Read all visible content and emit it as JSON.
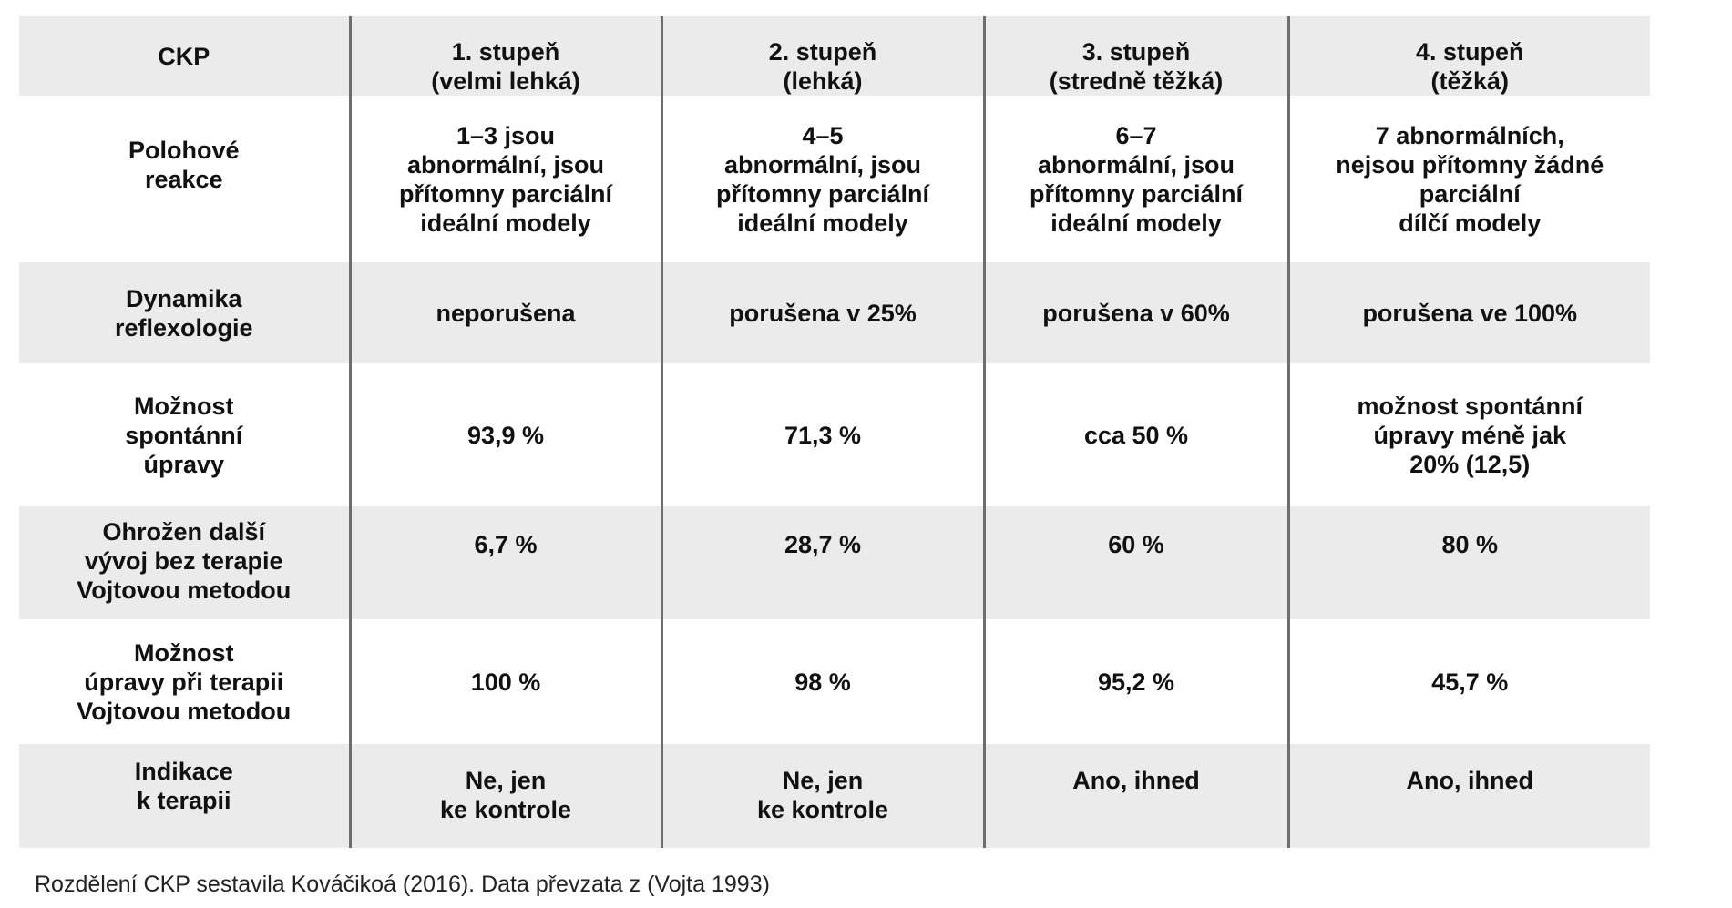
{
  "table": {
    "header": {
      "label": "CKP",
      "columns": [
        "1. stupeň\n(velmi lehká)",
        "2. stupeň\n(lehká)",
        "3. stupeň\n(stredně těžká)",
        "4. stupeň\n(těžká)"
      ]
    },
    "rows": [
      {
        "label": "Polohové\nreakce",
        "cells": [
          "1–3 jsou\nabnormální, jsou\npřítomny parciální\nideální modely",
          "4–5\nabnormální, jsou\npřítomny parciální\nideální modely",
          "6–7\nabnormální, jsou\npřítomny parciální\nideální modely",
          "7 abnormálních,\nnejsou přítomny žádné\nparciální\ndílčí modely"
        ]
      },
      {
        "label": "Dynamika\nreflexologie",
        "cells": [
          "neporušena",
          "porušena v 25%",
          "porušena v 60%",
          "porušena ve 100%"
        ]
      },
      {
        "label": "Možnost\nspontánní\núpravy",
        "cells": [
          "93,9 %",
          "71,3 %",
          "cca 50 %",
          "možnost spontánní\núpravy méně jak\n20% (12,5)"
        ]
      },
      {
        "label": "Ohrožen další\nvývoj bez terapie\nVojtovou metodou",
        "cells": [
          "6,7 %",
          "28,7 %",
          "60 %",
          "80 %"
        ]
      },
      {
        "label": "Možnost\núpravy při terapii\nVojtovou metodou",
        "cells": [
          "100 %",
          "98 %",
          "95,2 %",
          "45,7 %"
        ]
      },
      {
        "label": "Indikace\nk terapii",
        "cells": [
          "Ne, jen\nke kontrole",
          "Ne, jen\nke kontrole",
          "Ano, ihned",
          "Ano, ihned"
        ]
      }
    ]
  },
  "caption": "Rozdělení CKP sestavila Kováčikoá (2016). Data převzata z (Vojta 1993)"
}
